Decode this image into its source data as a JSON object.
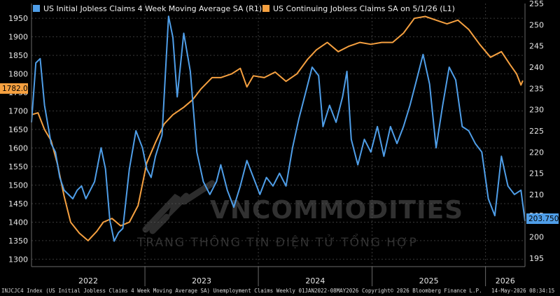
{
  "colors": {
    "blue": "#4f9ee8",
    "orange": "#f5a040",
    "bg": "#000000",
    "grid": "#3a3a3a"
  },
  "watermark": {
    "name": "VNCOMMODITIES",
    "tagline": "TRANG THÔNG TIN ĐIỆN TỬ TỔNG HỢP"
  },
  "footer": {
    "left": "INJCJC4 Index (US Initial Jobless Claims 4 Week Moving Average SA) Unemployment Claims Weekly 01JAN2022-08MAY2026",
    "center": "Copyright© 2026 Bloomberg Finance L.P.",
    "right": "14-May-2026 08:34:15"
  },
  "chart_data": {
    "type": "line",
    "x_range": [
      "2022-01-01",
      "2026-05-08"
    ],
    "x_tick_labels": [
      "2022",
      "2023",
      "2024",
      "2025",
      "2026"
    ],
    "left_axis": {
      "range": [
        1280,
        1990
      ],
      "ticks": [
        1300,
        1350,
        1400,
        1450,
        1500,
        1550,
        1600,
        1650,
        1700,
        1750,
        1800,
        1850,
        1900,
        1950
      ]
    },
    "right_axis": {
      "range": [
        193,
        255
      ],
      "ticks": [
        195,
        200,
        205,
        210,
        215,
        220,
        225,
        230,
        235,
        240,
        245,
        250,
        255
      ]
    },
    "grid": true,
    "legend_position": "top-left",
    "series": [
      {
        "name": "US Initial Jobless Claims 4 Week Moving Average SA  (R1)",
        "axis": "right",
        "color": "#4f9ee8",
        "last_value_label": "203.750",
        "points": [
          [
            "2022-01-01",
            227
          ],
          [
            "2022-01-15",
            241
          ],
          [
            "2022-01-29",
            242
          ],
          [
            "2022-02-12",
            231
          ],
          [
            "2022-03-05",
            222
          ],
          [
            "2022-03-19",
            220
          ],
          [
            "2022-04-02",
            214
          ],
          [
            "2022-04-16",
            211
          ],
          [
            "2022-04-30",
            210
          ],
          [
            "2022-05-14",
            209
          ],
          [
            "2022-05-28",
            211
          ],
          [
            "2022-06-11",
            212
          ],
          [
            "2022-06-25",
            209
          ],
          [
            "2022-07-09",
            211
          ],
          [
            "2022-07-23",
            213
          ],
          [
            "2022-08-13",
            221
          ],
          [
            "2022-08-27",
            216
          ],
          [
            "2022-09-10",
            204
          ],
          [
            "2022-09-24",
            199
          ],
          [
            "2022-10-08",
            201
          ],
          [
            "2022-10-22",
            202
          ],
          [
            "2022-11-12",
            216
          ],
          [
            "2022-12-03",
            225
          ],
          [
            "2022-12-24",
            221
          ],
          [
            "2023-01-07",
            216
          ],
          [
            "2023-01-21",
            214
          ],
          [
            "2023-02-04",
            219
          ],
          [
            "2023-02-25",
            224
          ],
          [
            "2023-03-18",
            252
          ],
          [
            "2023-04-01",
            247
          ],
          [
            "2023-04-15",
            233
          ],
          [
            "2023-05-06",
            248
          ],
          [
            "2023-05-27",
            239
          ],
          [
            "2023-06-17",
            220
          ],
          [
            "2023-07-08",
            213
          ],
          [
            "2023-07-29",
            210
          ],
          [
            "2023-08-19",
            213
          ],
          [
            "2023-09-02",
            217
          ],
          [
            "2023-09-23",
            211
          ],
          [
            "2023-10-14",
            207
          ],
          [
            "2023-11-04",
            212
          ],
          [
            "2023-11-25",
            218
          ],
          [
            "2023-12-16",
            214
          ],
          [
            "2024-01-06",
            210
          ],
          [
            "2024-01-27",
            214
          ],
          [
            "2024-02-17",
            212
          ],
          [
            "2024-03-09",
            215
          ],
          [
            "2024-03-30",
            212
          ],
          [
            "2024-04-20",
            221
          ],
          [
            "2024-05-11",
            228
          ],
          [
            "2024-06-01",
            234
          ],
          [
            "2024-06-22",
            240
          ],
          [
            "2024-07-13",
            238
          ],
          [
            "2024-07-27",
            226
          ],
          [
            "2024-08-17",
            231
          ],
          [
            "2024-09-07",
            227
          ],
          [
            "2024-09-28",
            233
          ],
          [
            "2024-10-12",
            239
          ],
          [
            "2024-10-26",
            223
          ],
          [
            "2024-11-16",
            217
          ],
          [
            "2024-12-07",
            223
          ],
          [
            "2024-12-28",
            220
          ],
          [
            "2025-01-18",
            226
          ],
          [
            "2025-02-08",
            219
          ],
          [
            "2025-03-01",
            226
          ],
          [
            "2025-03-22",
            222
          ],
          [
            "2025-04-12",
            226
          ],
          [
            "2025-05-03",
            231
          ],
          [
            "2025-05-24",
            237
          ],
          [
            "2025-06-14",
            243
          ],
          [
            "2025-07-05",
            236
          ],
          [
            "2025-07-26",
            221
          ],
          [
            "2025-08-16",
            231
          ],
          [
            "2025-09-06",
            240
          ],
          [
            "2025-09-27",
            237
          ],
          [
            "2025-10-18",
            226
          ],
          [
            "2025-11-08",
            225
          ],
          [
            "2025-11-29",
            222
          ],
          [
            "2025-12-20",
            220
          ],
          [
            "2026-01-10",
            209
          ],
          [
            "2026-01-31",
            205
          ],
          [
            "2026-02-21",
            219
          ],
          [
            "2026-03-14",
            212
          ],
          [
            "2026-04-04",
            210
          ],
          [
            "2026-04-25",
            211
          ],
          [
            "2026-05-08",
            203.75
          ]
        ]
      },
      {
        "name": "US Continuing Jobless Claims SA  on 5/1/26 (L1)",
        "axis": "left",
        "color": "#f5a040",
        "last_value_label": "1782.0",
        "points": [
          [
            "2022-01-01",
            1690
          ],
          [
            "2022-01-22",
            1695
          ],
          [
            "2022-02-12",
            1650
          ],
          [
            "2022-03-05",
            1620
          ],
          [
            "2022-03-26",
            1555
          ],
          [
            "2022-04-16",
            1470
          ],
          [
            "2022-05-07",
            1400
          ],
          [
            "2022-06-04",
            1370
          ],
          [
            "2022-07-02",
            1350
          ],
          [
            "2022-07-30",
            1375
          ],
          [
            "2022-08-20",
            1400
          ],
          [
            "2022-09-17",
            1410
          ],
          [
            "2022-10-15",
            1390
          ],
          [
            "2022-11-12",
            1400
          ],
          [
            "2022-12-10",
            1445
          ],
          [
            "2023-01-07",
            1560
          ],
          [
            "2023-02-04",
            1615
          ],
          [
            "2023-03-04",
            1665
          ],
          [
            "2023-04-01",
            1690
          ],
          [
            "2023-05-06",
            1710
          ],
          [
            "2023-06-03",
            1730
          ],
          [
            "2023-07-01",
            1760
          ],
          [
            "2023-08-05",
            1790
          ],
          [
            "2023-09-02",
            1790
          ],
          [
            "2023-10-07",
            1800
          ],
          [
            "2023-11-04",
            1815
          ],
          [
            "2023-11-25",
            1765
          ],
          [
            "2023-12-16",
            1795
          ],
          [
            "2024-01-20",
            1790
          ],
          [
            "2024-02-24",
            1805
          ],
          [
            "2024-03-30",
            1780
          ],
          [
            "2024-05-04",
            1800
          ],
          [
            "2024-06-08",
            1840
          ],
          [
            "2024-07-06",
            1865
          ],
          [
            "2024-08-10",
            1885
          ],
          [
            "2024-09-14",
            1860
          ],
          [
            "2024-10-19",
            1875
          ],
          [
            "2024-11-23",
            1885
          ],
          [
            "2024-12-28",
            1880
          ],
          [
            "2025-02-01",
            1885
          ],
          [
            "2025-03-08",
            1885
          ],
          [
            "2025-04-12",
            1910
          ],
          [
            "2025-05-17",
            1950
          ],
          [
            "2025-06-21",
            1955
          ],
          [
            "2025-07-26",
            1945
          ],
          [
            "2025-08-30",
            1935
          ],
          [
            "2025-10-04",
            1945
          ],
          [
            "2025-11-08",
            1920
          ],
          [
            "2025-12-13",
            1880
          ],
          [
            "2026-01-17",
            1845
          ],
          [
            "2026-02-21",
            1860
          ],
          [
            "2026-03-21",
            1825
          ],
          [
            "2026-04-11",
            1800
          ],
          [
            "2026-04-25",
            1770
          ],
          [
            "2026-05-01",
            1782
          ]
        ]
      }
    ]
  }
}
